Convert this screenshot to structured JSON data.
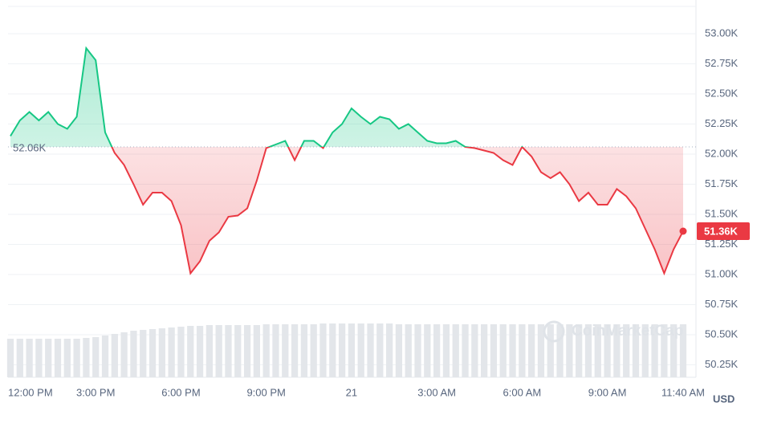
{
  "chart_data": {
    "type": "line",
    "xticks": [
      {
        "value": 0,
        "label": "12:00 PM"
      },
      {
        "value": 9,
        "label": "3:00 PM"
      },
      {
        "value": 18,
        "label": "6:00 PM"
      },
      {
        "value": 27,
        "label": "9:00 PM"
      },
      {
        "value": 36,
        "label": "21"
      },
      {
        "value": 45,
        "label": "3:00 AM"
      },
      {
        "value": 54,
        "label": "6:00 AM"
      },
      {
        "value": 63,
        "label": "9:00 AM"
      },
      {
        "value": 71,
        "label": "11:40 AM"
      }
    ],
    "xlim": [
      0,
      71
    ],
    "ylim": [
      50150,
      53200
    ],
    "yticks": [
      {
        "value": 50250,
        "label": "50.25K"
      },
      {
        "value": 50500,
        "label": "50.50K"
      },
      {
        "value": 50750,
        "label": "50.75K"
      },
      {
        "value": 51000,
        "label": "51.00K"
      },
      {
        "value": 51250,
        "label": "51.25K"
      },
      {
        "value": 51500,
        "label": "51.50K"
      },
      {
        "value": 51750,
        "label": "51.75K"
      },
      {
        "value": 52000,
        "label": "52.00K"
      },
      {
        "value": 52250,
        "label": "52.25K"
      },
      {
        "value": 52500,
        "label": "52.50K"
      },
      {
        "value": 52750,
        "label": "52.75K"
      },
      {
        "value": 53000,
        "label": "53.00K"
      }
    ],
    "grid": true,
    "values": [
      52150,
      52280,
      52350,
      52280,
      52350,
      52250,
      52210,
      52310,
      52880,
      52780,
      52180,
      52010,
      51910,
      51750,
      51580,
      51680,
      51680,
      51610,
      51410,
      51010,
      51110,
      51280,
      51350,
      51480,
      51490,
      51550,
      51780,
      52050,
      52080,
      52110,
      51950,
      52110,
      52110,
      52050,
      52180,
      52250,
      52380,
      52310,
      52250,
      52310,
      52290,
      52210,
      52250,
      52180,
      52110,
      52090,
      52090,
      52110,
      52060,
      52050,
      52030,
      52010,
      51950,
      51910,
      52060,
      51980,
      51850,
      51800,
      51850,
      51750,
      51610,
      51680,
      51580,
      51580,
      51710,
      51650,
      51550,
      51380,
      51210,
      51010,
      51210,
      51360
    ],
    "color_up": "#16c784",
    "color_down": "#ea3943",
    "baseline": {
      "value": 52060,
      "label": "52.06K"
    },
    "last_price": {
      "value": 51360,
      "label": "51.36K"
    },
    "volume": [
      48,
      48,
      48,
      48,
      48,
      48,
      48,
      48,
      49,
      50,
      52,
      54,
      56,
      58,
      59,
      60,
      61,
      62,
      63,
      64,
      64,
      65,
      65,
      65,
      65,
      65,
      65,
      66,
      66,
      66,
      66,
      66,
      66,
      67,
      67,
      67,
      67,
      67,
      67,
      67,
      67,
      66,
      66,
      66,
      66,
      66,
      66,
      66,
      66,
      66,
      66,
      66,
      66,
      66,
      66,
      66,
      66,
      66,
      66,
      66,
      66,
      66,
      66,
      66,
      66,
      66,
      66,
      66,
      66,
      66,
      66,
      66
    ],
    "volume_lim": [
      0,
      100
    ],
    "watermark": "CoinMarketCap",
    "currency": "USD"
  }
}
